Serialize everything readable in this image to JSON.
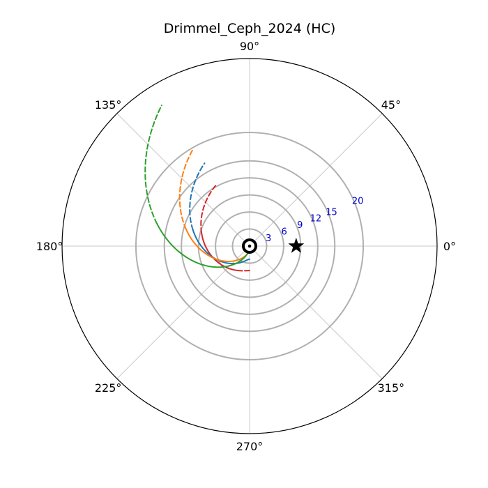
{
  "chart_data": {
    "type": "polar",
    "title": "Drimmel_Ceph_2024 (HC)",
    "angle_ticks": [
      {
        "deg": 0,
        "label": "0°"
      },
      {
        "deg": 45,
        "label": "45°"
      },
      {
        "deg": 90,
        "label": "90°"
      },
      {
        "deg": 135,
        "label": "135°"
      },
      {
        "deg": 180,
        "label": "180°"
      },
      {
        "deg": 225,
        "label": "225°"
      },
      {
        "deg": 270,
        "label": "270°"
      },
      {
        "deg": 315,
        "label": "315°"
      }
    ],
    "radial_ticks": [
      {
        "value": 3,
        "label": "3"
      },
      {
        "value": 6,
        "label": "6"
      },
      {
        "value": 9,
        "label": "9"
      },
      {
        "value": 12,
        "label": "12"
      },
      {
        "value": 15,
        "label": "15"
      },
      {
        "value": 20,
        "label": "20"
      }
    ],
    "radial_tick_label_angle_deg": 22.5,
    "rlim": [
      0,
      33
    ],
    "grid": true,
    "colors": {
      "grid_angular": "#c8c8c8",
      "grid_radial": "#b0b0b0",
      "tick_label": "#0000cc",
      "frame": "#000000"
    },
    "series": [
      {
        "color": "#d62728",
        "start": [
          4.3,
          270
        ],
        "end": [
          12.2,
          330.5
        ],
        "cut_deg": 48,
        "solid_from_deg": 124,
        "solid_to_deg": 311
      },
      {
        "color": "#1f77b4",
        "start": [
          2.3,
          270
        ],
        "end": [
          16.6,
          331.5
        ],
        "cut_deg": 34,
        "solid_from_deg": 113,
        "solid_to_deg": 308
      },
      {
        "color": "#ff7f0e",
        "start": [
          0.9,
          270
        ],
        "end": [
          19.8,
          330
        ],
        "cut_deg": 27,
        "solid_from_deg": 100,
        "solid_to_deg": 303
      },
      {
        "color": "#2ca02c",
        "start": [
          0.6,
          270
        ],
        "end": [
          29.2,
          328
        ],
        "cut_deg": 20,
        "solid_from_deg": 91,
        "solid_to_deg": 300
      }
    ],
    "markers": [
      {
        "name": "sun",
        "shape": "circled-dot",
        "r": 0,
        "theta": 0
      },
      {
        "name": "galactic-center",
        "shape": "star",
        "r": 8.2,
        "theta": 0
      }
    ]
  }
}
